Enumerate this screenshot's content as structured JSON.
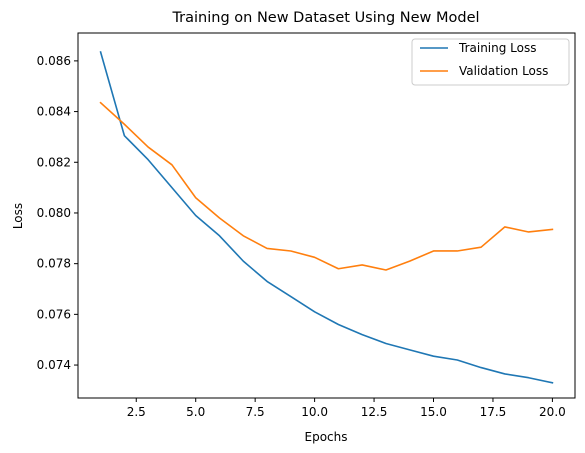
{
  "chart_data": {
    "type": "line",
    "title": "Training on New Dataset Using New Model",
    "xlabel": "Epochs",
    "ylabel": "Loss",
    "xlim": [
      0.05,
      20.95
    ],
    "ylim": [
      0.0727,
      0.0871
    ],
    "x_ticks": [
      2.5,
      5.0,
      7.5,
      10.0,
      12.5,
      15.0,
      17.5,
      20.0
    ],
    "x_tick_labels": [
      "2.5",
      "5.0",
      "7.5",
      "10.0",
      "12.5",
      "15.0",
      "17.5",
      "20.0"
    ],
    "y_ticks": [
      0.074,
      0.076,
      0.078,
      0.08,
      0.082,
      0.084,
      0.086
    ],
    "y_tick_labels": [
      "0.074",
      "0.076",
      "0.078",
      "0.080",
      "0.082",
      "0.084",
      "0.086"
    ],
    "grid": false,
    "legend_position": "top-right",
    "x": [
      1,
      2,
      3,
      4,
      5,
      6,
      7,
      8,
      9,
      10,
      11,
      12,
      13,
      14,
      15,
      16,
      17,
      18,
      19,
      20
    ],
    "series": [
      {
        "name": "Training Loss",
        "color": "#1f77b4",
        "values": [
          0.08635,
          0.08305,
          0.0821,
          0.081,
          0.0799,
          0.0791,
          0.0781,
          0.0773,
          0.0767,
          0.0761,
          0.0756,
          0.0752,
          0.07485,
          0.0746,
          0.07435,
          0.0742,
          0.0739,
          0.07365,
          0.0735,
          0.0733
        ]
      },
      {
        "name": "Validation Loss",
        "color": "#ff7f0e",
        "values": [
          0.08435,
          0.0835,
          0.0826,
          0.0819,
          0.0806,
          0.0798,
          0.0791,
          0.0786,
          0.0785,
          0.07825,
          0.0778,
          0.07795,
          0.07775,
          0.0781,
          0.0785,
          0.0785,
          0.07865,
          0.07945,
          0.07925,
          0.07935
        ]
      }
    ]
  }
}
